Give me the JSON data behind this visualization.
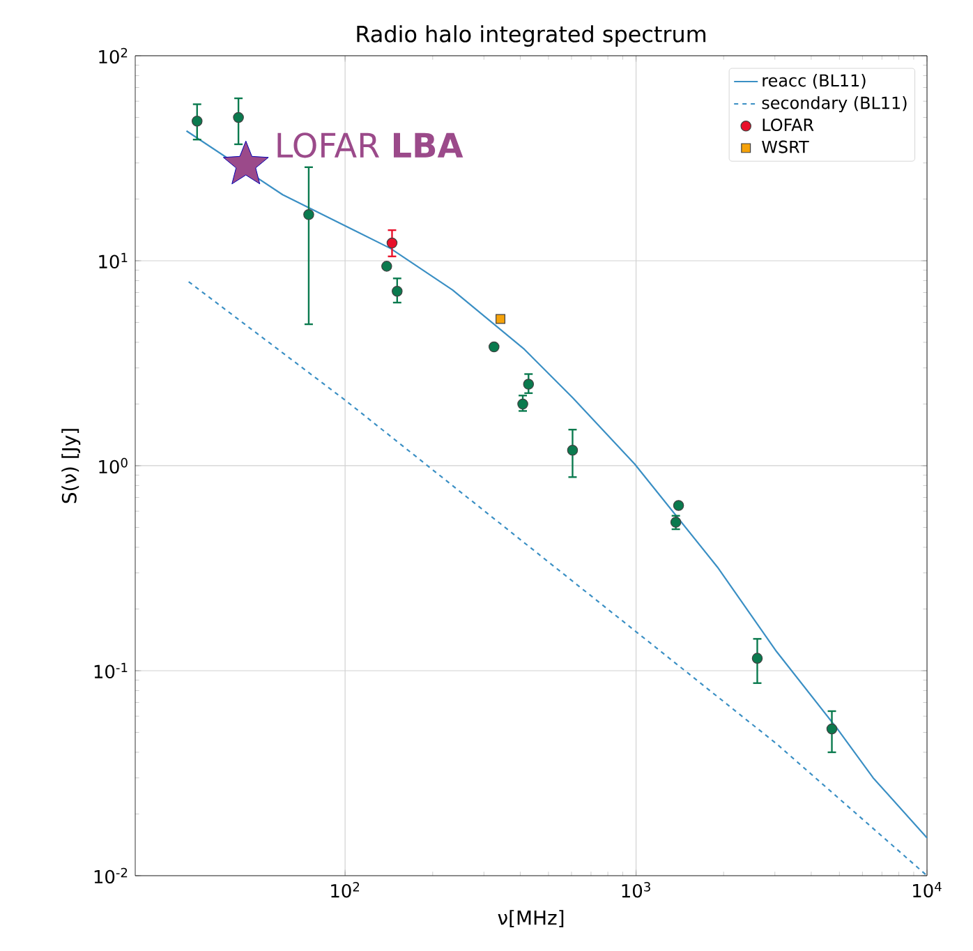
{
  "chart_data": {
    "type": "line",
    "title": "Radio halo integrated spectrum",
    "xlabel": "ν[MHz]",
    "ylabel": "S(ν) [Jy]",
    "log": "xy",
    "grid": true,
    "legend": "top right",
    "xlim": [
      19,
      10000
    ],
    "ylim": [
      0.01,
      100
    ],
    "xticks": [
      {
        "value": 100,
        "label": "10$^{2}$"
      },
      {
        "value": 1000,
        "label": "10$^{3}$"
      },
      {
        "value": 10000,
        "label": "10$^{4}$"
      }
    ],
    "yticks": [
      {
        "value": 0.01,
        "label": "10$^{-2}$"
      },
      {
        "value": 0.1,
        "label": "10$^{-1}$"
      },
      {
        "value": 1,
        "label": "10$^{0}$"
      },
      {
        "value": 10,
        "label": "10$^{1}$"
      },
      {
        "value": 100,
        "label": "10$^{2}$"
      }
    ],
    "series": [
      {
        "name": "reacc (BL11)",
        "color": "#3a8fc4",
        "line_style": "solid",
        "x": [
          28.5,
          61,
          143,
          234,
          413,
          605,
          989,
          1905,
          3040,
          4920,
          6530,
          10000
        ],
        "values": [
          43,
          21,
          11.5,
          7.2,
          3.7,
          2.15,
          1.02,
          0.32,
          0.124,
          0.052,
          0.03,
          0.0153
        ]
      },
      {
        "name": "secondary (BL11)",
        "color": "#3a8fc4",
        "line_style": "dashed",
        "x": [
          29,
          100,
          1000,
          3040,
          10000
        ],
        "values": [
          7.9,
          2.09,
          0.155,
          0.044,
          0.01
        ]
      },
      {
        "name": "LOFAR",
        "type": "scatter",
        "marker": "circle",
        "color": "#e8102a",
        "x": [
          145
        ],
        "values": [
          12.2
        ],
        "errors": [
          [
            10.5,
            14.1
          ]
        ]
      },
      {
        "name": "WSRT",
        "type": "scatter",
        "marker": "square",
        "color": "#f5a20a",
        "x": [
          342
        ],
        "values": [
          5.2
        ]
      },
      {
        "type": "scatter",
        "marker": "circle",
        "color": "#0a7a4e",
        "x": [
          31,
          43,
          75,
          139,
          151,
          325,
          427,
          408,
          605,
          1400,
          1370,
          2610,
          4710
        ],
        "values": [
          48,
          50,
          16.8,
          9.4,
          7.1,
          3.8,
          2.5,
          2.0,
          1.19,
          0.64,
          0.53,
          0.115,
          0.052
        ],
        "errors": [
          [
            39,
            58
          ],
          [
            37,
            62
          ],
          [
            4.9,
            28.6
          ],
          null,
          [
            6.25,
            8.2
          ],
          null,
          [
            2.26,
            2.8
          ],
          [
            1.85,
            2.2
          ],
          [
            0.88,
            1.5
          ],
          null,
          [
            0.49,
            0.57
          ],
          [
            0.087,
            0.143
          ],
          [
            0.04,
            0.0635
          ]
        ]
      }
    ],
    "annotations": [
      {
        "text": "LOFAR **LBA**",
        "x": 45.6,
        "y": 29.4
      }
    ]
  }
}
